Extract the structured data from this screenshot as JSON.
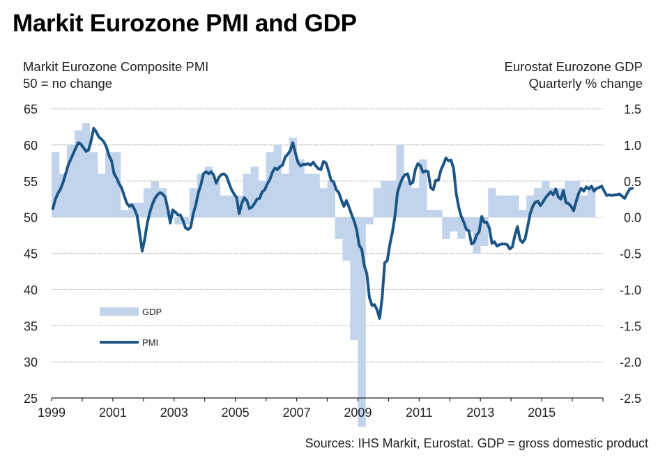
{
  "header": {
    "title": "Markit Eurozone PMI and GDP",
    "left_axis_title_line1": "Markit Eurozone Composite PMI",
    "left_axis_title_line2": "50 = no change",
    "right_axis_title_line1": "Eurostat Eurozone GDP",
    "right_axis_title_line2": "Quarterly % change"
  },
  "footer": {
    "source": "Sources: IHS Markit, Eurostat. GDP = gross domestic product"
  },
  "colors": {
    "gdp_bar": "#c2d3ec",
    "pmi_line": "#1b5586",
    "grid": "#bdbdbd",
    "axis": "#222222"
  },
  "chart_data": {
    "type": "bar+line",
    "title": "Markit Eurozone PMI and GDP",
    "xlabel": "",
    "ylabel_left": "Markit Eurozone Composite PMI (50 = no change)",
    "ylabel_right": "Eurostat Eurozone GDP, Quarterly % change",
    "x_range": [
      1999,
      2017
    ],
    "x_ticks": [
      "1999",
      "2001",
      "2003",
      "2005",
      "2007",
      "2009",
      "2011",
      "2013",
      "2015"
    ],
    "x_minor_ticks": [
      2000,
      2002,
      2004,
      2006,
      2008,
      2010,
      2012,
      2014,
      2016,
      2017
    ],
    "ylim_left": [
      25,
      65
    ],
    "yticks_left": [
      "65",
      "60",
      "55",
      "50",
      "45",
      "40",
      "35",
      "30",
      "25"
    ],
    "ylim_right": [
      -2.5,
      1.5
    ],
    "yticks_right": [
      "1.5",
      "1.0",
      "0.5",
      "0.0",
      "-0.5",
      "-1.0",
      "-1.5",
      "-2.0",
      "-2.5"
    ],
    "grid": true,
    "legend": {
      "placement": "lower-left",
      "entries": [
        {
          "name": "GDP",
          "kind": "bar"
        },
        {
          "name": "PMI",
          "kind": "line"
        }
      ]
    },
    "series": [
      {
        "name": "GDP",
        "kind": "bar",
        "axis": "right",
        "frequency": "quarterly",
        "start": "1999Q1",
        "values": [
          0.9,
          0.6,
          1.0,
          1.2,
          1.3,
          0.9,
          0.6,
          0.9,
          0.9,
          0.1,
          0.2,
          0.2,
          0.4,
          0.5,
          0.4,
          0.1,
          -0.1,
          -0.1,
          0.4,
          0.6,
          0.7,
          0.5,
          0.3,
          0.3,
          0.3,
          0.6,
          0.7,
          0.5,
          0.9,
          1.0,
          0.6,
          1.1,
          0.8,
          0.6,
          0.6,
          0.4,
          0.5,
          -0.3,
          -0.6,
          -1.7,
          -2.9,
          -0.1,
          0.4,
          0.5,
          0.5,
          1.0,
          0.5,
          0.4,
          0.8,
          0.1,
          0.1,
          -0.3,
          -0.2,
          -0.3,
          -0.2,
          -0.5,
          -0.4,
          0.4,
          0.3,
          0.3,
          0.3,
          0.1,
          0.3,
          0.4,
          0.5,
          0.4,
          0.4,
          0.5,
          0.5,
          0.3,
          0.4
        ]
      },
      {
        "name": "PMI",
        "kind": "line",
        "axis": "left",
        "frequency": "monthly",
        "start": "1999-01",
        "values": [
          51.2,
          52.5,
          53.3,
          53.9,
          54.8,
          56.0,
          57.2,
          58.0,
          58.8,
          59.6,
          60.3,
          60.1,
          59.6,
          59.1,
          59.3,
          60.6,
          62.3,
          61.8,
          61.1,
          60.8,
          60.4,
          59.7,
          58.5,
          57.8,
          56.0,
          55.4,
          54.6,
          54.0,
          52.9,
          51.9,
          51.5,
          51.7,
          51.1,
          50.2,
          47.8,
          45.3,
          47.0,
          49.2,
          50.7,
          51.8,
          52.6,
          53.1,
          53.4,
          53.2,
          52.8,
          51.2,
          49.2,
          51.0,
          50.7,
          50.3,
          50.3,
          49.5,
          48.5,
          48.3,
          48.6,
          50.5,
          51.7,
          53.4,
          54.5,
          56.0,
          56.3,
          56.0,
          56.3,
          55.8,
          54.7,
          55.5,
          55.9,
          56.0,
          55.7,
          54.7,
          53.8,
          53.2,
          52.7,
          50.5,
          51.9,
          52.7,
          52.3,
          51.2,
          51.4,
          51.9,
          52.5,
          52.6,
          53.5,
          53.8,
          54.6,
          55.2,
          56.2,
          56.8,
          56.6,
          57.0,
          57.2,
          58.3,
          58.7,
          59.2,
          60.3,
          58.9,
          57.6,
          57.1,
          57.3,
          57.3,
          57.4,
          57.2,
          57.6,
          57.1,
          56.7,
          56.6,
          57.7,
          57.5,
          56.4,
          55.1,
          54.9,
          53.8,
          53.4,
          52.4,
          51.5,
          52.3,
          51.4,
          50.4,
          49.5,
          48.3,
          46.1,
          45.6,
          43.3,
          42.2,
          38.9,
          37.8,
          37.9,
          37.2,
          36.0,
          38.9,
          43.7,
          44.0,
          46.2,
          47.9,
          50.1,
          53.4,
          54.6,
          55.4,
          55.9,
          56.0,
          54.6,
          54.8,
          56.6,
          57.4,
          57.1,
          56.2,
          56.4,
          56.3,
          54.1,
          53.8,
          55.1,
          55.1,
          56.5,
          57.3,
          58.2,
          57.8,
          57.9,
          56.7,
          53.3,
          51.4,
          50.1,
          49.3,
          48.3,
          48.1,
          46.3,
          46.5,
          47.5,
          48.0,
          50.1,
          49.3,
          49.3,
          48.5,
          46.4,
          46.6,
          46.0,
          46.2,
          46.3,
          46.3,
          46.2,
          45.6,
          45.9,
          47.5,
          48.7,
          46.9,
          46.5,
          47.0,
          48.7,
          50.5,
          51.5,
          52.1,
          52.2,
          51.6,
          52.1,
          52.7,
          53.1,
          53.5,
          53.1,
          53.9,
          52.8,
          52.5,
          53.7,
          52.0,
          51.9,
          51.5,
          50.9,
          52.2,
          53.3,
          54.0,
          53.6,
          54.2,
          53.9,
          54.3,
          53.6,
          54.0,
          54.1,
          54.3,
          53.6,
          53.0,
          53.1,
          53.0,
          53.1,
          53.1,
          53.2,
          52.9,
          52.6,
          53.3,
          53.9,
          54.0
        ]
      }
    ]
  }
}
